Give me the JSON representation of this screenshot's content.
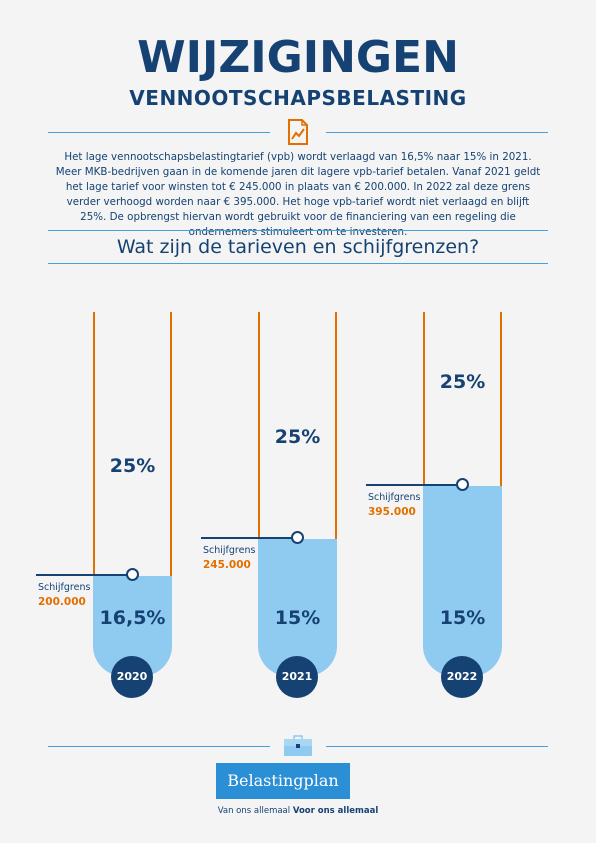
{
  "header": {
    "title": "WIJZIGINGEN",
    "subtitle": "VENNOOTSCHAPSBELASTING"
  },
  "intro": "Het lage vennootschapsbelastingtarief (vpb) wordt verlaagd van 16,5% naar 15% in 2021. Meer MKB-bedrijven gaan in de komende jaren dit lagere vpb-tarief betalen. Vanaf 2021 geldt het lage tarief voor winsten tot € 245.000 in plaats van € 200.000. In 2022 zal deze grens verder verhoogd worden naar € 395.000. Het hoge vpb-tarief wordt niet verlaagd en blijft 25%. De opbrengst hiervan wordt gebruikt voor de financiering van een regeling die ondernemers stimuleert om te investeren.",
  "question": "Wat zijn de tarieven en schijfgrenzen?",
  "columns": [
    {
      "year": "2020",
      "low_rate": "16,5%",
      "high_rate": "25%",
      "bracket_label": "Schijfgrens",
      "bracket_value": "200.000"
    },
    {
      "year": "2021",
      "low_rate": "15%",
      "high_rate": "25%",
      "bracket_label": "Schijfgrens",
      "bracket_value": "245.000"
    },
    {
      "year": "2022",
      "low_rate": "15%",
      "high_rate": "25%",
      "bracket_label": "Schijfgrens",
      "bracket_value": "395.000"
    }
  ],
  "footer": {
    "button_label": "Belastingplan",
    "tagline_regular": "Van ons allemaal ",
    "tagline_bold": "Voor ons allemaal"
  },
  "colors": {
    "navy": "#154273",
    "orange": "#e17000",
    "light_blue": "#8fcaf0",
    "accent_blue": "#2b8fd6"
  },
  "icons": [
    "document-chart-icon",
    "briefcase-icon"
  ]
}
